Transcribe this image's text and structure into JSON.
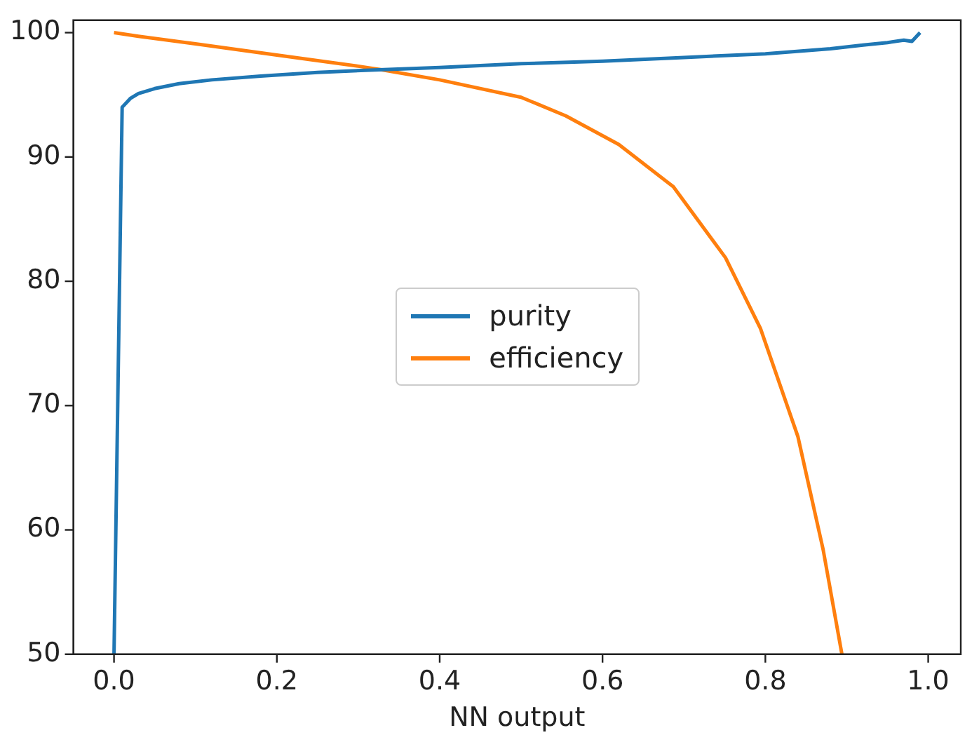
{
  "chart_data": {
    "type": "line",
    "xlabel": "NN output",
    "xlim": [
      -0.05,
      1.04
    ],
    "xticks": [
      {
        "value": 0,
        "label": "0.0"
      },
      {
        "value": 0.2,
        "label": "0.2"
      },
      {
        "value": 0.4,
        "label": "0.4"
      },
      {
        "value": 0.6,
        "label": "0.6"
      },
      {
        "value": 0.8,
        "label": "0.8"
      },
      {
        "value": 1,
        "label": "1.0"
      }
    ],
    "ylim": [
      50,
      101
    ],
    "yticks": [
      50,
      60,
      70,
      80,
      90,
      100
    ],
    "grid": false,
    "legend": "center",
    "marker": "none",
    "line_style": "solid",
    "series": [
      {
        "name": "purity",
        "color": "#1f77b4",
        "x": [
          0,
          0.01,
          0.02,
          0.03,
          0.05,
          0.08,
          0.12,
          0.18,
          0.25,
          0.32,
          0.4,
          0.5,
          0.6,
          0.7,
          0.8,
          0.88,
          0.92,
          0.95,
          0.97,
          0.98,
          0.99
        ],
        "values": [
          50,
          94,
          94.7,
          95.1,
          95.5,
          95.9,
          96.2,
          96.5,
          96.8,
          97,
          97.2,
          97.5,
          97.7,
          98,
          98.3,
          98.7,
          99,
          99.2,
          99.4,
          99.3,
          100
        ]
      },
      {
        "name": "efficiency",
        "color": "#ff7f0e",
        "x": [
          0,
          0.03,
          0.1,
          0.2,
          0.3,
          0.33,
          0.4,
          0.5,
          0.555,
          0.62,
          0.687,
          0.751,
          0.794,
          0.84,
          0.871,
          0.894
        ],
        "values": [
          100,
          99.7,
          99.1,
          98.2,
          97.3,
          97,
          96.2,
          94.8,
          93.3,
          91,
          87.6,
          81.9,
          76.2,
          67.5,
          58.4,
          50
        ]
      }
    ]
  }
}
